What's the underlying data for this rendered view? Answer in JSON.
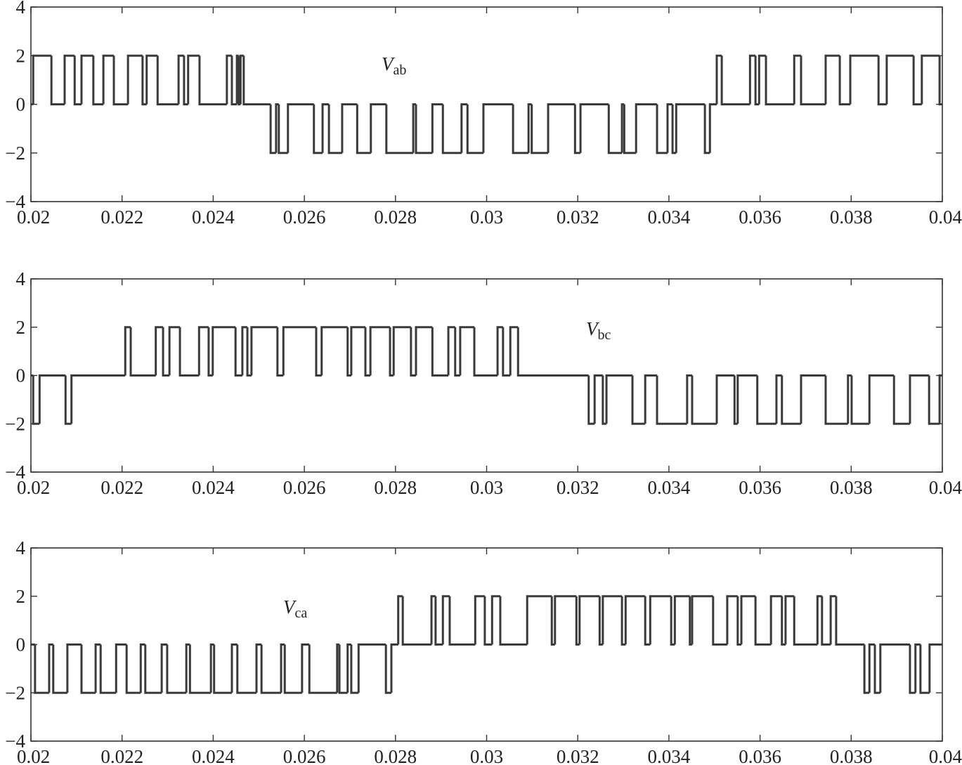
{
  "chart_data": [
    {
      "type": "line",
      "drawstyle": "steps-post",
      "color": "#3a3a3a",
      "annotation": {
        "text": "V",
        "subscript": "ab"
      },
      "xlim": [
        0.02,
        0.04
      ],
      "ylim": [
        -4,
        4
      ],
      "xticks": [
        0.02,
        0.022,
        0.024,
        0.026,
        0.028,
        0.03,
        0.032,
        0.034,
        0.036,
        0.038,
        0.04
      ],
      "yticks": [
        {
          "value": -4,
          "label": "−4"
        },
        {
          "value": -2,
          "label": "−2"
        },
        0,
        2,
        4
      ],
      "x": [
        0.02,
        0.02005,
        0.02045,
        0.02074,
        0.02096,
        0.02111,
        0.02137,
        0.02159,
        0.02182,
        0.02213,
        0.02245,
        0.02254,
        0.02278,
        0.02324,
        0.02336,
        0.02345,
        0.0237,
        0.0243,
        0.02441,
        0.02452,
        0.02456,
        0.0246,
        0.02467,
        0.02526,
        0.02538,
        0.02544,
        0.02564,
        0.02621,
        0.0264,
        0.02654,
        0.02683,
        0.02716,
        0.02746,
        0.0278,
        0.02839,
        0.02845,
        0.02881,
        0.02904,
        0.02945,
        0.02958,
        0.02993,
        0.03058,
        0.03092,
        0.03099,
        0.03135,
        0.03194,
        0.03206,
        0.03268,
        0.03297,
        0.03302,
        0.03328,
        0.03374,
        0.03397,
        0.03408,
        0.03416,
        0.03479,
        0.0349,
        0.03505,
        0.03516,
        0.03578,
        0.0359,
        0.03598,
        0.03613,
        0.03675,
        0.0369,
        0.03744,
        0.03775,
        0.03798,
        0.0386,
        0.03878,
        0.03937,
        0.03955,
        0.03994,
        0.04
      ],
      "values": [
        0,
        2,
        0,
        2,
        0,
        2,
        0,
        2,
        0,
        2,
        0,
        2,
        0,
        2,
        0,
        2,
        0,
        2,
        0,
        2,
        0,
        2,
        0,
        -2,
        0,
        -2,
        0,
        -2,
        0,
        -2,
        0,
        -2,
        0,
        -2,
        0,
        -2,
        0,
        -2,
        0,
        -2,
        0,
        -2,
        0,
        -2,
        0,
        -2,
        0,
        -2,
        0,
        -2,
        0,
        -2,
        0,
        -2,
        0,
        -2,
        0,
        2,
        0,
        2,
        0,
        2,
        0,
        2,
        0,
        2,
        0,
        2,
        0,
        2,
        0,
        2,
        0,
        0
      ]
    },
    {
      "type": "line",
      "drawstyle": "steps-post",
      "color": "#3a3a3a",
      "annotation": {
        "text": "V",
        "subscript": "bc"
      },
      "xlim": [
        0.02,
        0.04
      ],
      "ylim": [
        -4,
        4
      ],
      "xticks": [
        0.02,
        0.022,
        0.024,
        0.026,
        0.028,
        0.03,
        0.032,
        0.034,
        0.036,
        0.038,
        0.04
      ],
      "yticks": [
        {
          "value": -4,
          "label": "−4"
        },
        {
          "value": -2,
          "label": "−2"
        },
        0,
        2,
        4
      ],
      "x": [
        0.02,
        0.02005,
        0.02019,
        0.02076,
        0.02089,
        0.02207,
        0.02219,
        0.02274,
        0.0229,
        0.02304,
        0.02327,
        0.02369,
        0.0239,
        0.02399,
        0.02449,
        0.02464,
        0.02475,
        0.02484,
        0.02541,
        0.02554,
        0.02626,
        0.02638,
        0.02695,
        0.02703,
        0.02734,
        0.02745,
        0.02788,
        0.02796,
        0.02834,
        0.02845,
        0.02881,
        0.02916,
        0.02931,
        0.02942,
        0.02973,
        0.03024,
        0.03036,
        0.03052,
        0.03069,
        0.03224,
        0.03237,
        0.03255,
        0.03263,
        0.0332,
        0.03348,
        0.03374,
        0.0344,
        0.03451,
        0.03505,
        0.03544,
        0.03551,
        0.03594,
        0.03636,
        0.03648,
        0.0369,
        0.03744,
        0.03793,
        0.03801,
        0.0384,
        0.03894,
        0.03929,
        0.03971,
        0.03994,
        0.04
      ],
      "values": [
        0,
        -2,
        0,
        -2,
        0,
        2,
        0,
        2,
        0,
        2,
        0,
        2,
        0,
        2,
        0,
        2,
        0,
        2,
        0,
        2,
        0,
        2,
        0,
        2,
        0,
        2,
        0,
        2,
        0,
        2,
        0,
        2,
        0,
        2,
        0,
        2,
        0,
        2,
        0,
        -2,
        0,
        -2,
        0,
        -2,
        0,
        -2,
        0,
        -2,
        0,
        -2,
        0,
        -2,
        0,
        -2,
        0,
        -2,
        0,
        -2,
        0,
        -2,
        0,
        -2,
        0,
        0
      ]
    },
    {
      "type": "line",
      "drawstyle": "steps-post",
      "color": "#3a3a3a",
      "annotation": {
        "text": "V",
        "subscript": "ca"
      },
      "xlim": [
        0.02,
        0.04
      ],
      "ylim": [
        -4,
        4
      ],
      "xticks": [
        0.02,
        0.022,
        0.024,
        0.026,
        0.028,
        0.03,
        0.032,
        0.034,
        0.036,
        0.038,
        0.04
      ],
      "yticks": [
        {
          "value": -4,
          "label": "−4"
        },
        {
          "value": -2,
          "label": "−2"
        },
        0,
        2,
        4
      ],
      "x": [
        0.02,
        0.02009,
        0.0204,
        0.02049,
        0.0208,
        0.02111,
        0.02142,
        0.02153,
        0.02187,
        0.0221,
        0.02241,
        0.02251,
        0.02287,
        0.02299,
        0.02341,
        0.02349,
        0.02395,
        0.02402,
        0.02441,
        0.02453,
        0.02495,
        0.02506,
        0.02549,
        0.02557,
        0.02595,
        0.02611,
        0.02672,
        0.02677,
        0.02695,
        0.02703,
        0.02719,
        0.02779,
        0.02791,
        0.02806,
        0.02816,
        0.02879,
        0.02888,
        0.02904,
        0.02919,
        0.02975,
        0.02996,
        0.03012,
        0.0303,
        0.03089,
        0.03143,
        0.0315,
        0.03197,
        0.03204,
        0.03248,
        0.03255,
        0.03297,
        0.03305,
        0.03348,
        0.03359,
        0.03405,
        0.03413,
        0.03446,
        0.03451,
        0.03497,
        0.03528,
        0.03551,
        0.03559,
        0.0359,
        0.03624,
        0.03648,
        0.03656,
        0.03675,
        0.03726,
        0.03736,
        0.03755,
        0.03767,
        0.03829,
        0.0384,
        0.03852,
        0.03864,
        0.03929,
        0.03941,
        0.03952,
        0.03972,
        0.04
      ],
      "values": [
        0,
        -2,
        0,
        -2,
        0,
        -2,
        0,
        -2,
        0,
        -2,
        0,
        -2,
        0,
        -2,
        0,
        -2,
        0,
        -2,
        0,
        -2,
        0,
        -2,
        0,
        -2,
        0,
        -2,
        0,
        -2,
        0,
        -2,
        0,
        -2,
        0,
        2,
        0,
        2,
        0,
        2,
        0,
        2,
        0,
        2,
        0,
        2,
        0,
        2,
        0,
        2,
        0,
        2,
        0,
        2,
        0,
        2,
        0,
        2,
        0,
        2,
        0,
        2,
        0,
        2,
        0,
        2,
        0,
        2,
        0,
        2,
        0,
        2,
        0,
        -2,
        0,
        -2,
        0,
        -2,
        0,
        -2,
        0,
        0
      ]
    }
  ]
}
